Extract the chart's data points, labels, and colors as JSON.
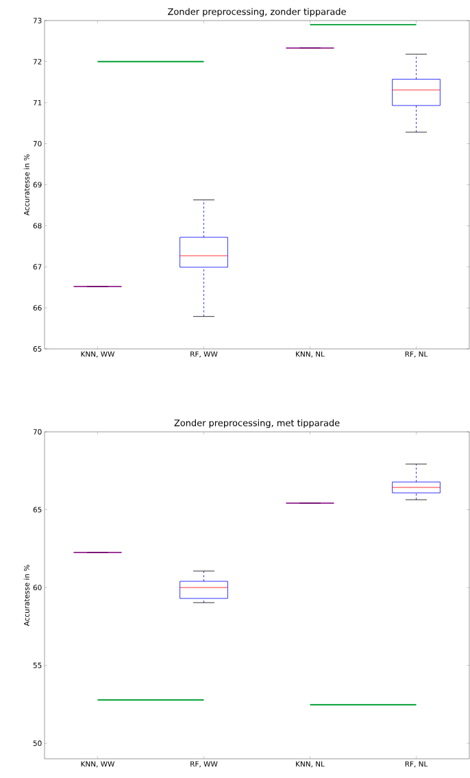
{
  "chart_data": [
    {
      "type": "box",
      "title": "Zonder preprocessing, zonder tipparade",
      "ylabel": "Accuratesse in %",
      "categories": [
        "KNN, WW",
        "RF, WW",
        "KNN, NL",
        "RF, NL"
      ],
      "ylim": [
        65,
        73
      ],
      "yticks": [
        65,
        66,
        67,
        68,
        69,
        70,
        71,
        72,
        73
      ],
      "series": [
        {
          "color": "#0000ff",
          "boxes": [
            {
              "low": 66.52,
              "q1": 66.52,
              "median": 66.52,
              "q3": 66.52,
              "high": 66.52
            },
            {
              "low": 65.79,
              "q1": 66.99,
              "median": 67.27,
              "q3": 67.72,
              "high": 68.63
            },
            {
              "low": 72.33,
              "q1": 72.33,
              "median": 72.33,
              "q3": 72.33,
              "high": 72.33
            },
            {
              "low": 70.28,
              "q1": 70.93,
              "median": 71.31,
              "q3": 71.57,
              "high": 72.18
            }
          ]
        },
        {
          "type": "line",
          "color": "#1aaa48",
          "x": [
            "KNN, WW",
            "RF, WW"
          ],
          "values": [
            72.0,
            72.0
          ]
        },
        {
          "type": "line",
          "color": "#1aaa48",
          "x": [
            "KNN, NL",
            "RF, NL"
          ],
          "values": [
            72.9,
            72.9
          ]
        }
      ]
    },
    {
      "type": "box",
      "title": "Zonder preprocessing, met tipparade",
      "ylabel": "Accuratesse in %",
      "categories": [
        "KNN, WW",
        "RF, WW",
        "KNN, NL",
        "RF, NL"
      ],
      "ylim": [
        49,
        70
      ],
      "yticks": [
        50,
        55,
        60,
        65,
        70
      ],
      "series": [
        {
          "color": "#0000ff",
          "boxes": [
            {
              "low": 62.25,
              "q1": 62.25,
              "median": 62.25,
              "q3": 62.25,
              "high": 62.25
            },
            {
              "low": 59.03,
              "q1": 59.3,
              "median": 60.0,
              "q3": 60.4,
              "high": 61.06
            },
            {
              "low": 65.42,
              "q1": 65.42,
              "median": 65.42,
              "q3": 65.42,
              "high": 65.42
            },
            {
              "low": 65.64,
              "q1": 66.08,
              "median": 66.43,
              "q3": 66.78,
              "high": 67.93
            }
          ]
        },
        {
          "type": "line",
          "color": "#1aaa48",
          "x": [
            "KNN, WW",
            "RF, WW"
          ],
          "values": [
            52.78,
            52.78
          ]
        },
        {
          "type": "line",
          "color": "#1aaa48",
          "x": [
            "KNN, NL",
            "RF, NL"
          ],
          "values": [
            52.47,
            52.47
          ]
        }
      ]
    }
  ]
}
